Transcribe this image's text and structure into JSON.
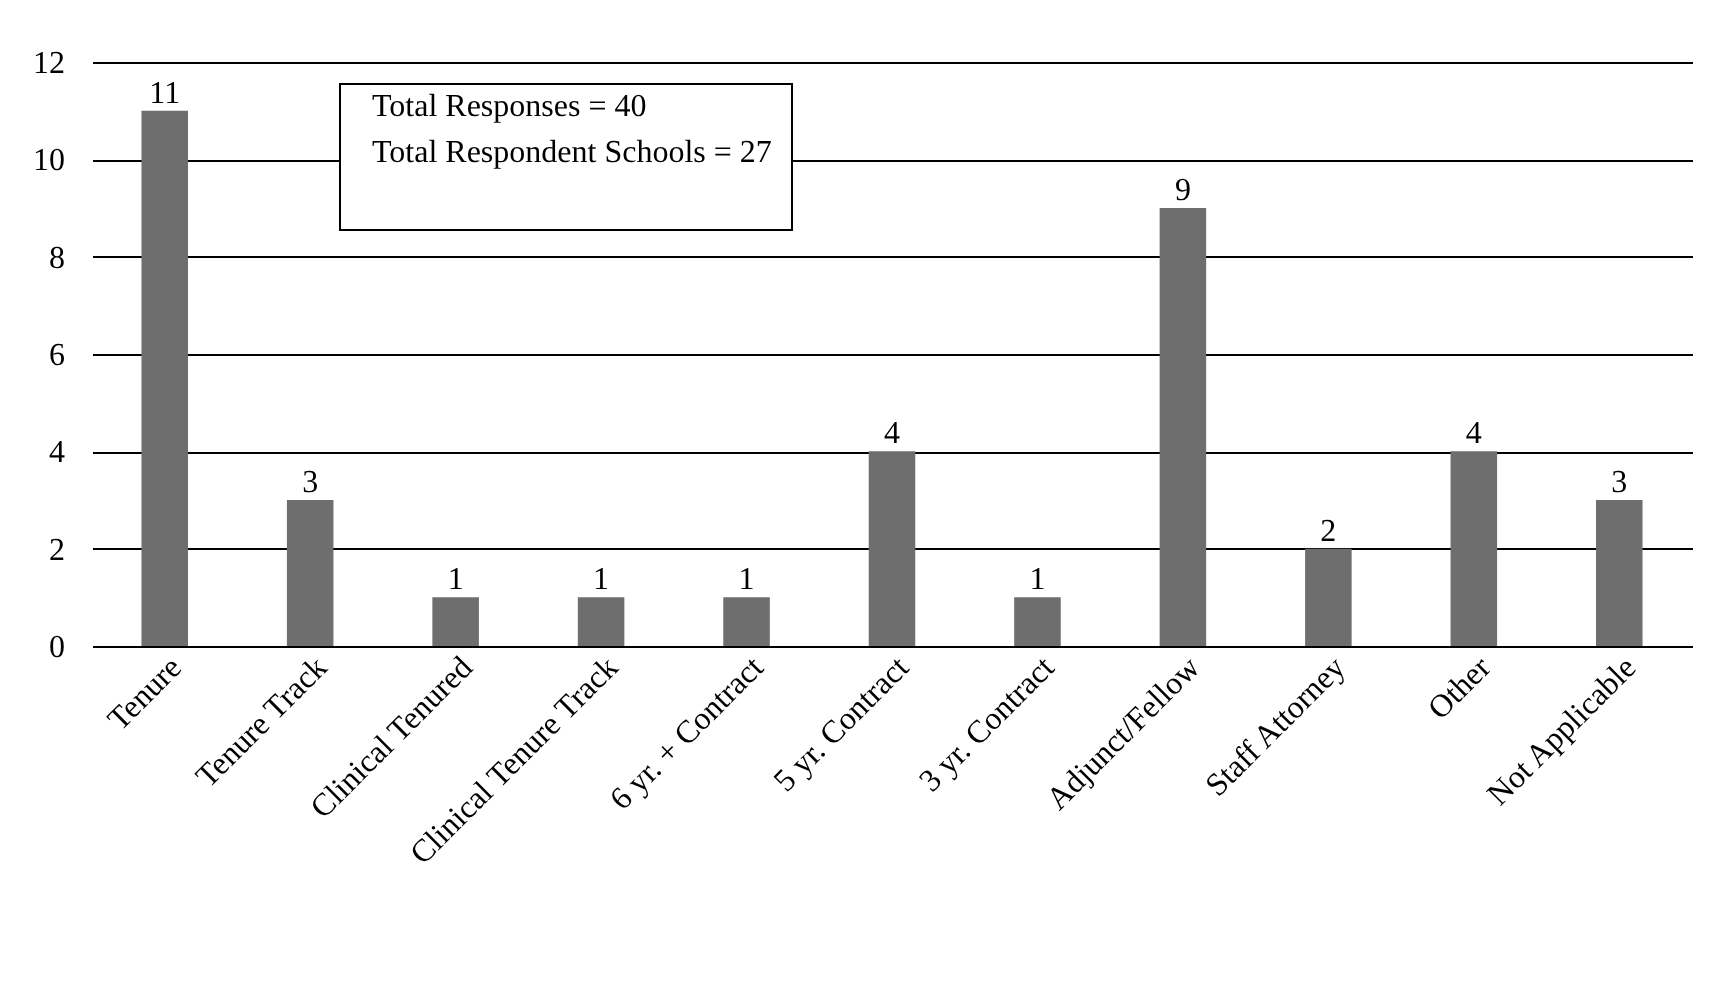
{
  "chart_data": {
    "type": "bar",
    "categories": [
      "Tenure",
      "Tenure Track",
      "Clinical Tenured",
      "Clinical Tenure Track",
      "6 yr. + Contract",
      "5 yr. Contract",
      "3 yr. Contract",
      "Adjunct/Fellow",
      "Staff Attorney",
      "Other",
      "Not Applicable"
    ],
    "values": [
      11,
      3,
      1,
      1,
      1,
      4,
      1,
      9,
      2,
      4,
      3
    ],
    "color": "#6e6e6e",
    "ylim": [
      0,
      12
    ],
    "yticks": [
      0,
      2,
      4,
      6,
      8,
      10,
      12
    ],
    "grid": "y",
    "data_labels": true,
    "annotations": [
      "Total Responses = 40",
      "Total Respondent Schools = 27"
    ]
  }
}
